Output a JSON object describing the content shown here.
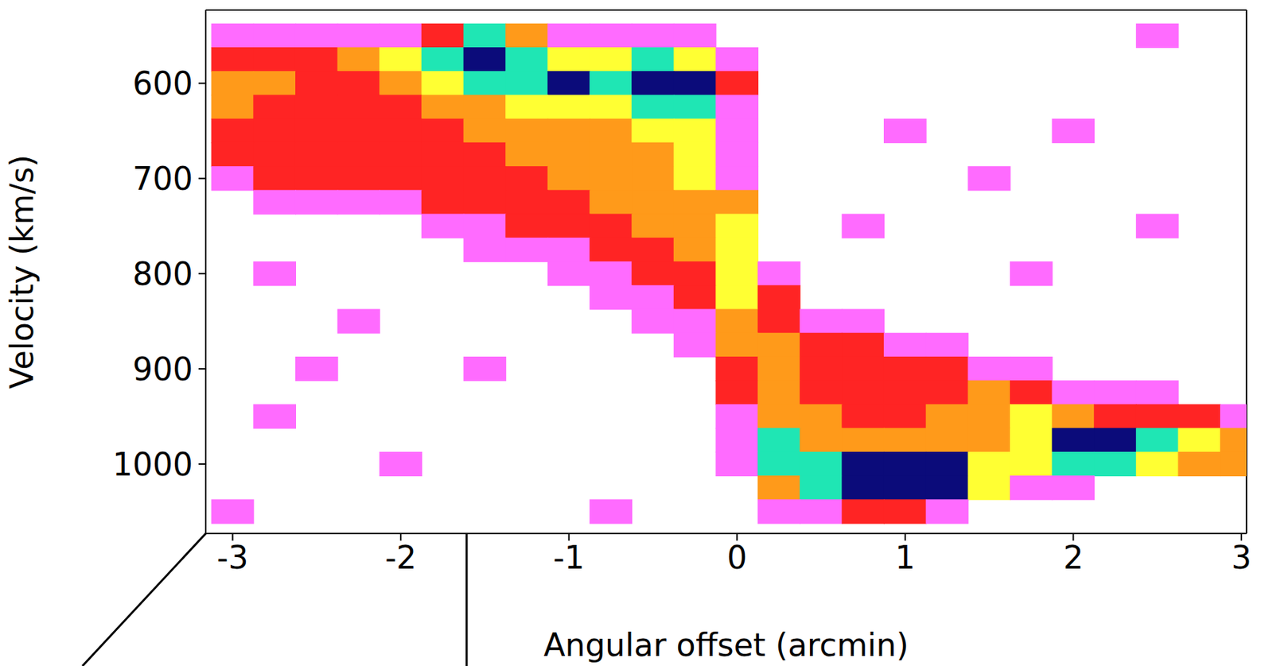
{
  "chart_data": {
    "type": "heatmap",
    "x_label": "Angular offset (arcmin)",
    "y_label": "Velocity (km/s)",
    "x": [
      -3.0,
      -2.75,
      -2.5,
      -2.25,
      -2.0,
      -1.75,
      -1.5,
      -1.25,
      -1.0,
      -0.75,
      -0.5,
      -0.25,
      0.0,
      0.25,
      0.5,
      0.75,
      1.0,
      1.25,
      1.5,
      1.75,
      2.0,
      2.25,
      2.5,
      2.75,
      3.0
    ],
    "y": [
      550,
      575,
      600,
      625,
      650,
      675,
      700,
      725,
      750,
      775,
      800,
      825,
      850,
      875,
      900,
      925,
      950,
      975,
      1000,
      1025,
      1050
    ],
    "z": [
      [
        1,
        1,
        1,
        1,
        1,
        2,
        5,
        3,
        1,
        1,
        1,
        1,
        0,
        0,
        0,
        0,
        0,
        0,
        0,
        0,
        0,
        0,
        1,
        0,
        0
      ],
      [
        2,
        2,
        2,
        3,
        4,
        5,
        6,
        5,
        4,
        4,
        5,
        4,
        1,
        0,
        0,
        0,
        0,
        0,
        0,
        0,
        0,
        0,
        0,
        0,
        0
      ],
      [
        3,
        3,
        2,
        2,
        3,
        4,
        5,
        5,
        6,
        5,
        6,
        6,
        2,
        0,
        0,
        0,
        0,
        0,
        0,
        0,
        0,
        0,
        0,
        0,
        0
      ],
      [
        3,
        2,
        2,
        2,
        2,
        3,
        3,
        4,
        4,
        4,
        5,
        5,
        1,
        0,
        0,
        0,
        0,
        0,
        0,
        0,
        0,
        0,
        0,
        0,
        0
      ],
      [
        2,
        2,
        2,
        2,
        2,
        2,
        3,
        3,
        3,
        3,
        4,
        4,
        1,
        0,
        0,
        0,
        1,
        0,
        0,
        0,
        1,
        0,
        0,
        0,
        0
      ],
      [
        2,
        2,
        2,
        2,
        2,
        2,
        2,
        3,
        3,
        3,
        3,
        4,
        1,
        0,
        0,
        0,
        0,
        0,
        0,
        0,
        0,
        0,
        0,
        0,
        0
      ],
      [
        1,
        2,
        2,
        2,
        2,
        2,
        2,
        2,
        3,
        3,
        3,
        4,
        1,
        0,
        0,
        0,
        0,
        0,
        1,
        0,
        0,
        0,
        0,
        0,
        0
      ],
      [
        0,
        1,
        1,
        1,
        1,
        2,
        2,
        2,
        2,
        3,
        3,
        3,
        3,
        0,
        0,
        0,
        0,
        0,
        0,
        0,
        0,
        0,
        0,
        0,
        0
      ],
      [
        0,
        0,
        0,
        0,
        0,
        1,
        1,
        2,
        2,
        2,
        3,
        3,
        4,
        0,
        0,
        1,
        0,
        0,
        0,
        0,
        0,
        0,
        1,
        0,
        0
      ],
      [
        0,
        0,
        0,
        0,
        0,
        0,
        1,
        1,
        1,
        2,
        2,
        3,
        4,
        0,
        0,
        0,
        0,
        0,
        0,
        0,
        0,
        0,
        0,
        0,
        0
      ],
      [
        0,
        1,
        0,
        0,
        0,
        0,
        0,
        0,
        1,
        1,
        2,
        2,
        4,
        1,
        0,
        0,
        0,
        0,
        0,
        1,
        0,
        0,
        0,
        0,
        0
      ],
      [
        0,
        0,
        0,
        0,
        0,
        0,
        0,
        0,
        0,
        1,
        1,
        2,
        4,
        2,
        0,
        0,
        0,
        0,
        0,
        0,
        0,
        0,
        0,
        0,
        0
      ],
      [
        0,
        0,
        0,
        1,
        0,
        0,
        0,
        0,
        0,
        0,
        1,
        1,
        3,
        2,
        1,
        1,
        0,
        0,
        0,
        0,
        0,
        0,
        0,
        0,
        0
      ],
      [
        0,
        0,
        0,
        0,
        0,
        0,
        0,
        0,
        0,
        0,
        0,
        1,
        3,
        3,
        2,
        2,
        1,
        1,
        0,
        0,
        0,
        0,
        0,
        0,
        0
      ],
      [
        0,
        0,
        1,
        0,
        0,
        0,
        1,
        0,
        0,
        0,
        0,
        0,
        2,
        3,
        2,
        2,
        2,
        2,
        1,
        1,
        0,
        0,
        0,
        0,
        0
      ],
      [
        0,
        0,
        0,
        0,
        0,
        0,
        0,
        0,
        0,
        0,
        0,
        0,
        2,
        3,
        2,
        2,
        2,
        2,
        3,
        2,
        1,
        1,
        1,
        0,
        0
      ],
      [
        0,
        1,
        0,
        0,
        0,
        0,
        0,
        0,
        0,
        0,
        0,
        0,
        1,
        3,
        3,
        2,
        2,
        3,
        3,
        4,
        3,
        2,
        2,
        2,
        1
      ],
      [
        0,
        0,
        0,
        0,
        0,
        0,
        0,
        0,
        0,
        0,
        0,
        0,
        1,
        5,
        3,
        3,
        3,
        3,
        3,
        4,
        6,
        6,
        5,
        4,
        3
      ],
      [
        0,
        0,
        0,
        0,
        1,
        0,
        0,
        0,
        0,
        0,
        0,
        0,
        1,
        5,
        5,
        6,
        6,
        6,
        4,
        4,
        5,
        5,
        4,
        3,
        3
      ],
      [
        0,
        0,
        0,
        0,
        0,
        0,
        0,
        0,
        0,
        0,
        0,
        0,
        0,
        3,
        5,
        6,
        6,
        6,
        4,
        1,
        1,
        0,
        0,
        0,
        0
      ],
      [
        1,
        0,
        0,
        0,
        0,
        0,
        0,
        0,
        0,
        1,
        0,
        0,
        0,
        1,
        1,
        2,
        2,
        1,
        0,
        0,
        0,
        0,
        0,
        0,
        0
      ]
    ],
    "zlim": [
      0,
      6
    ],
    "xlim": [
      -3.16,
      3.03
    ],
    "ylim": [
      523,
      1073
    ],
    "xticks": [
      -3,
      -2,
      -1,
      0,
      1,
      2,
      3
    ],
    "yticks": [
      600,
      700,
      800,
      900,
      1000
    ]
  }
}
